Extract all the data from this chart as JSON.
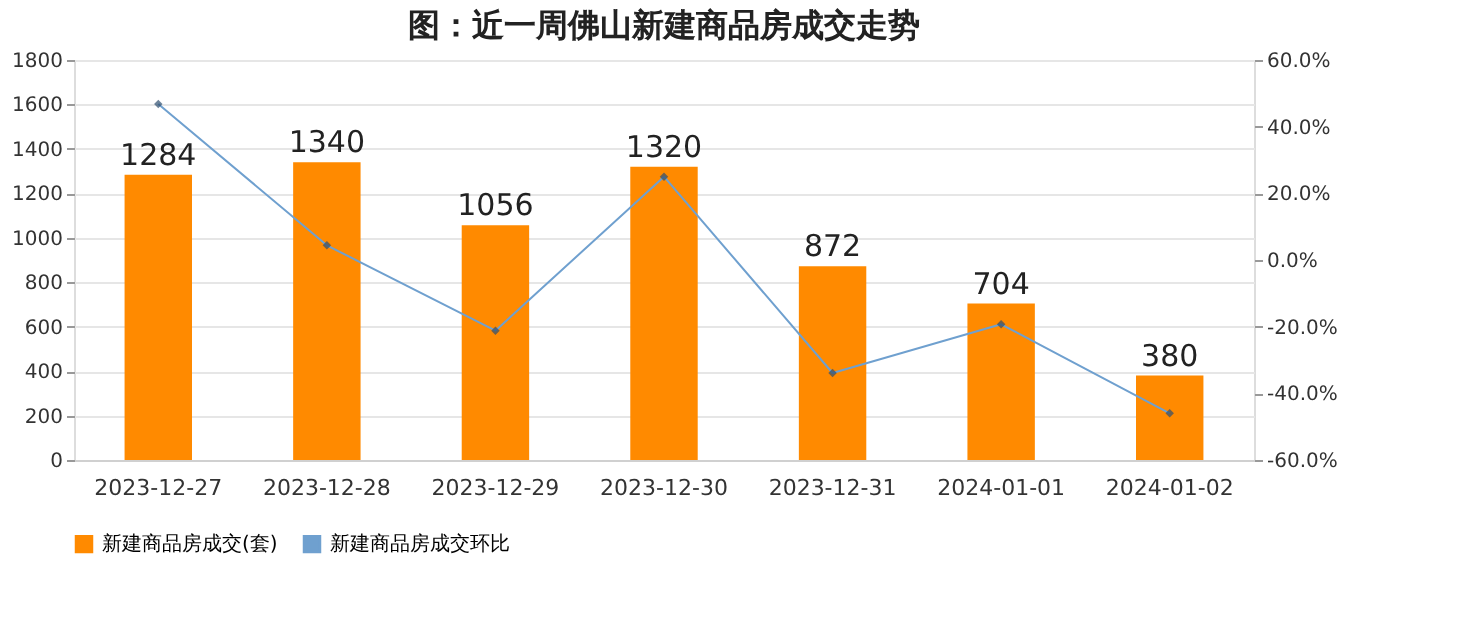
{
  "chart_data": {
    "type": "bar",
    "title": "图：近一周佛山新建商品房成交走势",
    "categories": [
      "2023-12-27",
      "2023-12-28",
      "2023-12-29",
      "2023-12-30",
      "2023-12-31",
      "2024-01-01",
      "2024-01-02"
    ],
    "series": [
      {
        "name": "新建商品房成交(套)",
        "color": "#ff8a00",
        "values": [
          1284,
          1340,
          1056,
          1320,
          872,
          704,
          380
        ],
        "value_labels": [
          "1284",
          "1340",
          "1056",
          "1320",
          "872",
          "704",
          "380"
        ]
      },
      {
        "name": "新建商品房成交环比",
        "type": "line",
        "axis": "y2",
        "color": "#6fa0cf",
        "marker": "diamond",
        "values": [
          46.8,
          4.4,
          -21.2,
          25.0,
          -33.9,
          -19.3,
          -46.0
        ]
      }
    ],
    "ylim": [
      0,
      1800
    ],
    "yticks": [
      0,
      200,
      400,
      600,
      800,
      1000,
      1200,
      1400,
      1600,
      1800
    ],
    "y2lim": [
      -60,
      60
    ],
    "y2ticks": [
      {
        "value": -60,
        "label": "-60.0%"
      },
      {
        "value": -40,
        "label": "-40.0%"
      },
      {
        "value": -20,
        "label": "-20.0%"
      },
      {
        "value": 0,
        "label": "0.0%"
      },
      {
        "value": 20,
        "label": "20.0%"
      },
      {
        "value": 40,
        "label": "40.0%"
      },
      {
        "value": 60,
        "label": "60.0%"
      }
    ],
    "grid": "y",
    "legend": "bottom"
  }
}
